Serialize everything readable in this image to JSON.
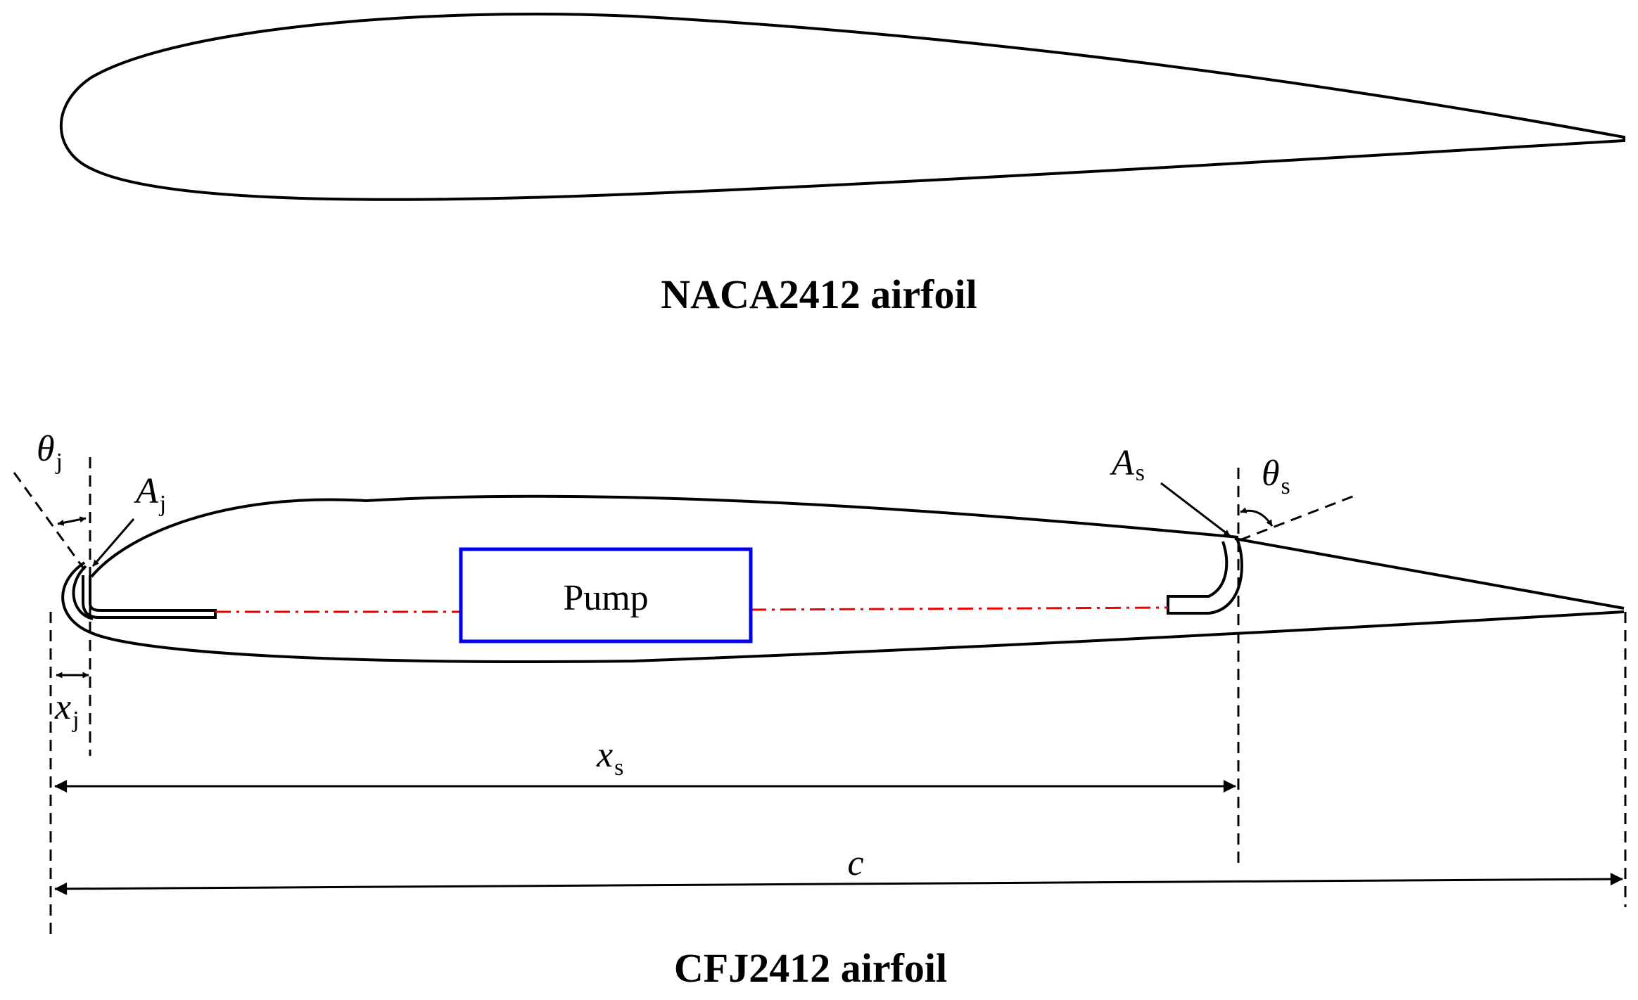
{
  "top_caption": "NACA2412 airfoil",
  "bottom_caption": "CFJ2412 airfoil",
  "pump_label": "Pump",
  "symbols": {
    "theta": "θ",
    "A": "A",
    "x": "x",
    "c": "c",
    "sub_j": "j",
    "sub_s": "s"
  },
  "colors": {
    "outline": "#000000",
    "pump_box": "#0000ee",
    "duct_line": "#ee0000"
  }
}
